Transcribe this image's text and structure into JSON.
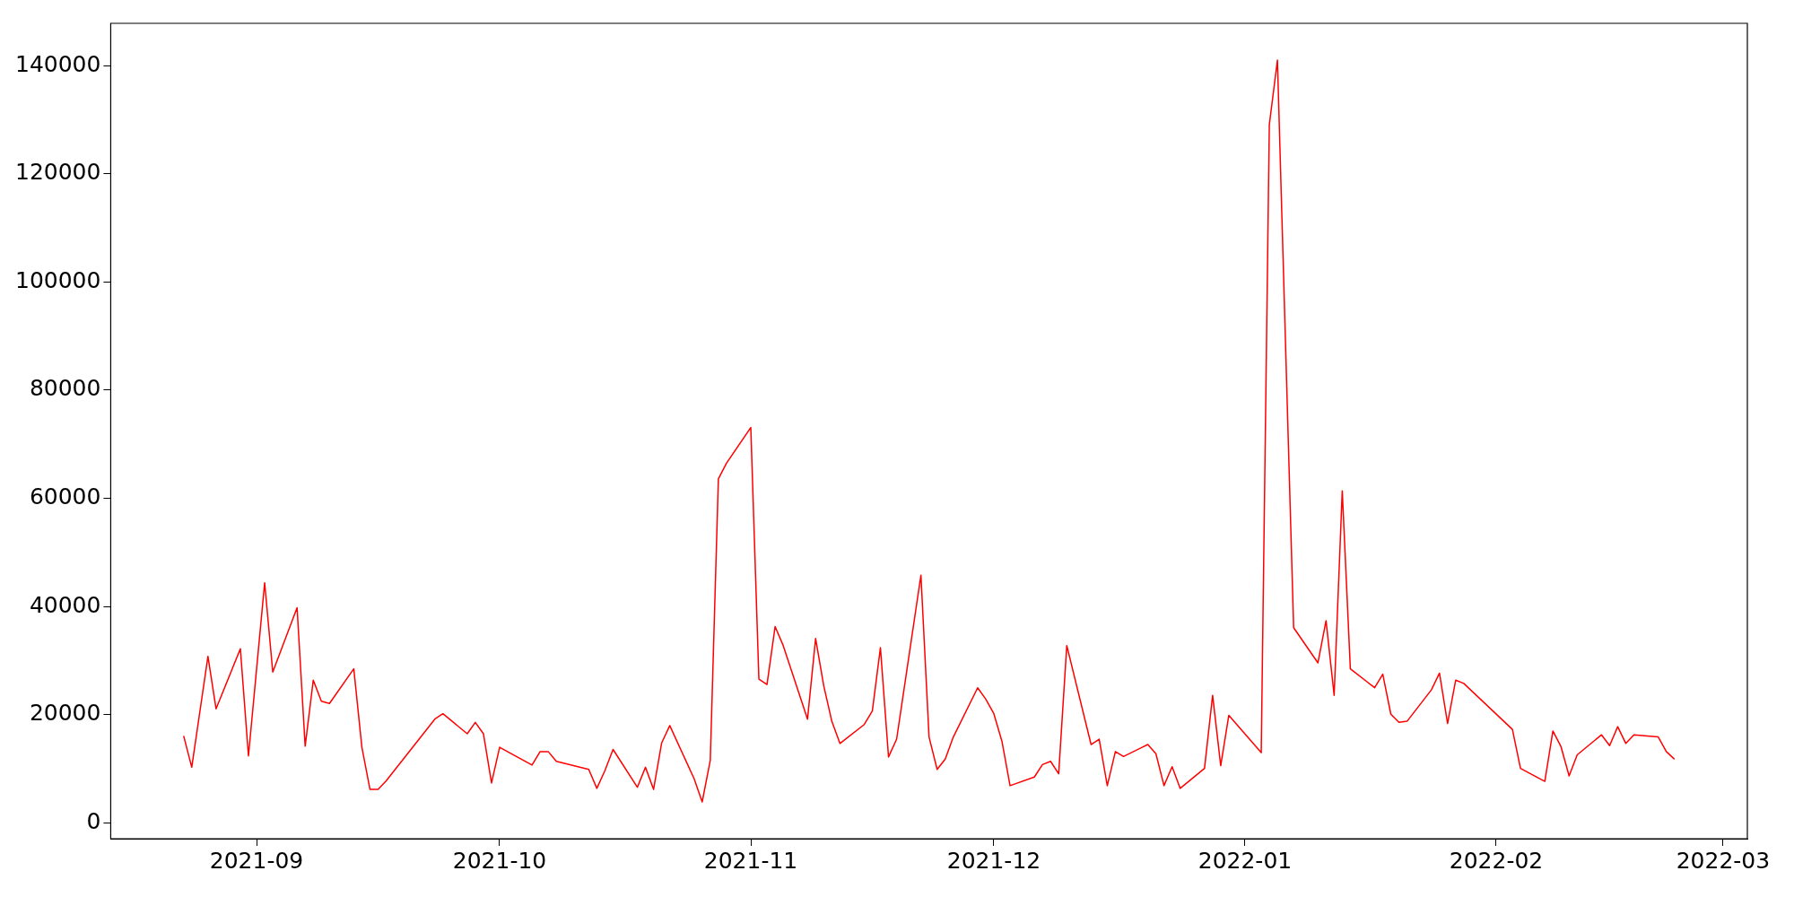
{
  "chart_data": {
    "type": "line",
    "xlim": [
      "2021-08-14",
      "2022-03-04"
    ],
    "ylim": [
      -2900,
      147800
    ],
    "xticks": [
      {
        "value": "2021-09-01",
        "label": "2021-09"
      },
      {
        "value": "2021-10-01",
        "label": "2021-10"
      },
      {
        "value": "2021-11-01",
        "label": "2021-11"
      },
      {
        "value": "2021-12-01",
        "label": "2021-12"
      },
      {
        "value": "2022-01-01",
        "label": "2022-01"
      },
      {
        "value": "2022-02-01",
        "label": "2022-02"
      },
      {
        "value": "2022-03-01",
        "label": "2022-03"
      }
    ],
    "yticks": [
      0,
      20000,
      40000,
      60000,
      80000,
      100000,
      120000,
      140000
    ],
    "grid": false,
    "legend": false,
    "marker": "none",
    "line_style": "solid",
    "series": [
      {
        "color": "#ff0000",
        "x": [
          "2021-08-23",
          "2021-08-24",
          "2021-08-26",
          "2021-08-27",
          "2021-08-30",
          "2021-08-31",
          "2021-09-02",
          "2021-09-03",
          "2021-09-06",
          "2021-09-07",
          "2021-09-08",
          "2021-09-09",
          "2021-09-10",
          "2021-09-13",
          "2021-09-14",
          "2021-09-15",
          "2021-09-16",
          "2021-09-17",
          "2021-09-23",
          "2021-09-24",
          "2021-09-27",
          "2021-09-28",
          "2021-09-29",
          "2021-09-30",
          "2021-10-01",
          "2021-10-05",
          "2021-10-06",
          "2021-10-07",
          "2021-10-08",
          "2021-10-12",
          "2021-10-13",
          "2021-10-14",
          "2021-10-15",
          "2021-10-18",
          "2021-10-19",
          "2021-10-20",
          "2021-10-21",
          "2021-10-22",
          "2021-10-25",
          "2021-10-26",
          "2021-10-27",
          "2021-10-28",
          "2021-10-29",
          "2021-11-01",
          "2021-11-02",
          "2021-11-03",
          "2021-11-04",
          "2021-11-05",
          "2021-11-08",
          "2021-11-09",
          "2021-11-10",
          "2021-11-11",
          "2021-11-12",
          "2021-11-15",
          "2021-11-16",
          "2021-11-17",
          "2021-11-18",
          "2021-11-19",
          "2021-11-22",
          "2021-11-23",
          "2021-11-24",
          "2021-11-25",
          "2021-11-26",
          "2021-11-29",
          "2021-11-30",
          "2021-12-01",
          "2021-12-02",
          "2021-12-03",
          "2021-12-06",
          "2021-12-07",
          "2021-12-08",
          "2021-12-09",
          "2021-12-10",
          "2021-12-13",
          "2021-12-14",
          "2021-12-15",
          "2021-12-16",
          "2021-12-17",
          "2021-12-20",
          "2021-12-21",
          "2021-12-22",
          "2021-12-23",
          "2021-12-24",
          "2021-12-27",
          "2021-12-28",
          "2021-12-29",
          "2021-12-30",
          "2022-01-03",
          "2022-01-04",
          "2022-01-05",
          "2022-01-07",
          "2022-01-10",
          "2022-01-11",
          "2022-01-12",
          "2022-01-13",
          "2022-01-14",
          "2022-01-17",
          "2022-01-18",
          "2022-01-19",
          "2022-01-20",
          "2022-01-21",
          "2022-01-24",
          "2022-01-25",
          "2022-01-26",
          "2022-01-27",
          "2022-01-28",
          "2022-02-03",
          "2022-02-04",
          "2022-02-07",
          "2022-02-08",
          "2022-02-09",
          "2022-02-10",
          "2022-02-11",
          "2022-02-14",
          "2022-02-15",
          "2022-02-16",
          "2022-02-17",
          "2022-02-18",
          "2022-02-21",
          "2022-02-22",
          "2022-02-23"
        ],
        "values": [
          16100,
          10300,
          30800,
          21100,
          32200,
          12400,
          44400,
          27900,
          39800,
          14200,
          26400,
          22500,
          22100,
          28500,
          14000,
          6200,
          6200,
          7800,
          19200,
          20200,
          16500,
          18600,
          16500,
          7400,
          14000,
          10700,
          13200,
          13200,
          11400,
          9900,
          6400,
          9700,
          13600,
          6600,
          10300,
          6200,
          14800,
          18000,
          8200,
          3900,
          11600,
          63600,
          66500,
          73100,
          26600,
          25600,
          36300,
          32800,
          19200,
          34100,
          25400,
          18800,
          14700,
          18200,
          20700,
          32400,
          12200,
          15500,
          45800,
          15900,
          9900,
          11800,
          15900,
          25000,
          22900,
          20200,
          15100,
          6900,
          8500,
          10800,
          11400,
          9100,
          32800,
          14500,
          15500,
          6900,
          13200,
          12300,
          14500,
          12800,
          6900,
          10400,
          6400,
          10100,
          23600,
          10600,
          19900,
          13000,
          129100,
          141000,
          36100,
          29600,
          37400,
          23600,
          61400,
          28500,
          25000,
          27500,
          20100,
          18600,
          18800,
          24600,
          27700,
          18400,
          26400,
          25800,
          17300,
          10100,
          7700,
          17000,
          14100,
          8700,
          12600,
          16300,
          14300,
          17800,
          14700,
          16300,
          15900,
          13200,
          11800
        ]
      }
    ]
  }
}
